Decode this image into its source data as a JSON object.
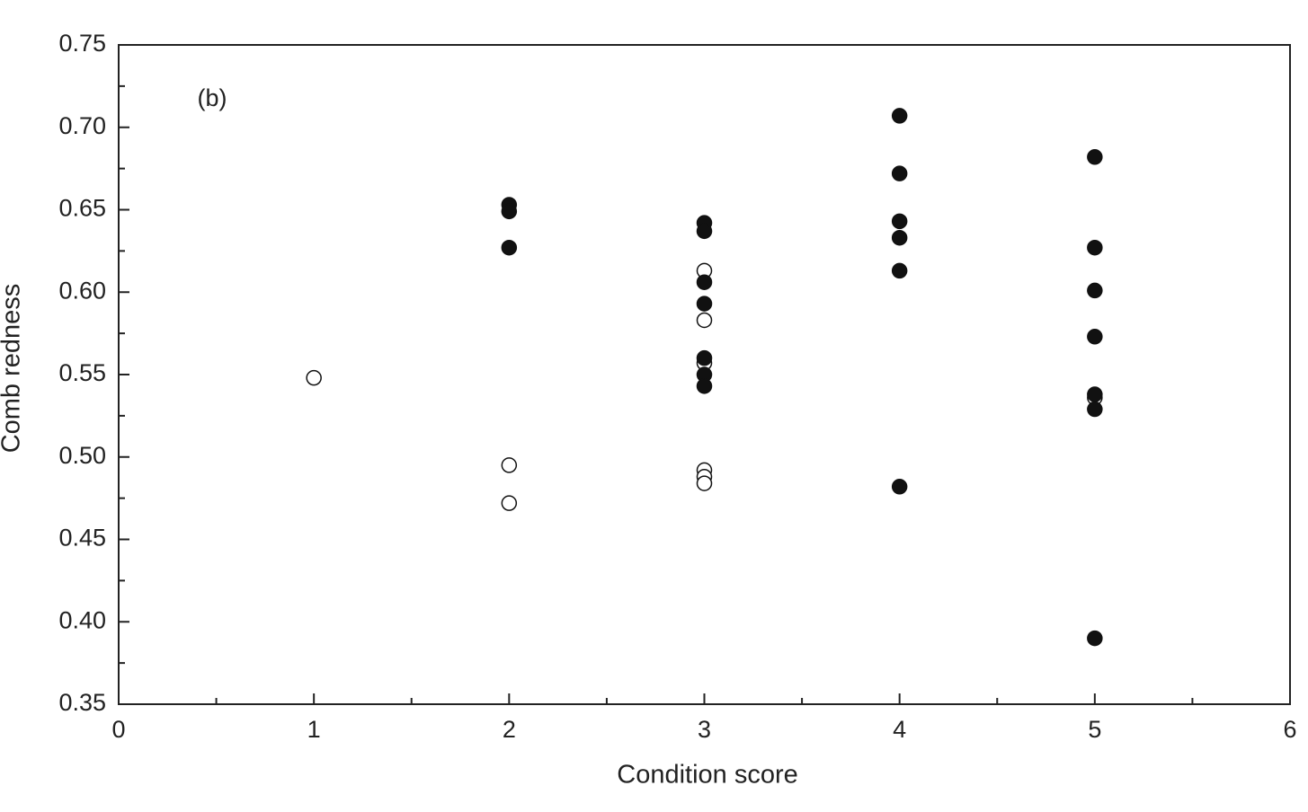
{
  "chart_data": {
    "type": "scatter",
    "annotation": "(b)",
    "xlabel": "Condition score",
    "ylabel": "Comb redness",
    "xlim": [
      0,
      6
    ],
    "xticks": [
      0,
      1,
      2,
      3,
      4,
      5,
      6
    ],
    "minor_xticks": [
      0.5,
      1.5,
      2.5,
      3.5,
      4.5,
      5.5
    ],
    "ylim": [
      0.35,
      0.75
    ],
    "yticks": [
      0.35,
      {
        "value": 0.4,
        "label": "0.40"
      },
      0.45,
      {
        "value": 0.5,
        "label": "0.50"
      },
      0.55,
      {
        "value": 0.6,
        "label": "0.60"
      },
      0.65,
      {
        "value": 0.7,
        "label": "0.70"
      },
      0.75
    ],
    "minor_yticks": [
      0.375,
      0.425,
      0.475,
      0.525,
      0.575,
      0.625,
      0.675,
      0.725
    ],
    "series": [
      {
        "color": "#111111",
        "marker": "open",
        "x": [
          1,
          2,
          2,
          3,
          3,
          3,
          3,
          3,
          3,
          5
        ],
        "values": [
          0.548,
          0.495,
          0.472,
          0.613,
          0.583,
          0.557,
          0.492,
          0.488,
          0.484,
          0.536
        ]
      },
      {
        "color": "#111111",
        "marker": "filled",
        "x": [
          2,
          2,
          2,
          3,
          3,
          3,
          3,
          3,
          3,
          3,
          4,
          4,
          4,
          4,
          4,
          4,
          5,
          5,
          5,
          5,
          5,
          5,
          5
        ],
        "values": [
          0.653,
          0.649,
          0.627,
          0.642,
          0.637,
          0.606,
          0.593,
          0.56,
          0.55,
          0.543,
          0.707,
          0.672,
          0.643,
          0.633,
          0.613,
          0.482,
          0.682,
          0.627,
          0.601,
          0.573,
          0.538,
          0.529,
          0.39
        ]
      }
    ]
  }
}
